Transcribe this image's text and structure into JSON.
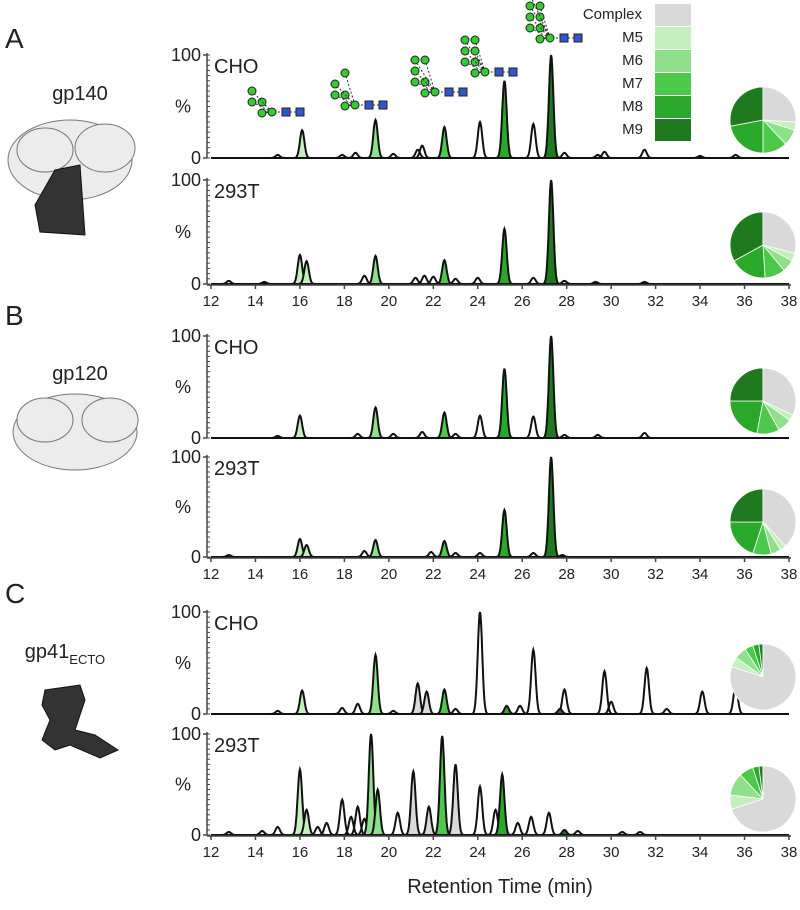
{
  "x_axis_label": "Retention Time (min)",
  "y_unit": "%",
  "legend": [
    {
      "name": "Complex",
      "color": "#d9d9d9"
    },
    {
      "name": "M5",
      "color": "#c6efc0"
    },
    {
      "name": "M6",
      "color": "#8ee08a"
    },
    {
      "name": "M7",
      "color": "#4cc94a"
    },
    {
      "name": "M8",
      "color": "#2aa82a"
    },
    {
      "name": "M9",
      "color": "#1f7a1f"
    }
  ],
  "panels": [
    {
      "letter": "A",
      "protein": "gp140"
    },
    {
      "letter": "B",
      "protein": "gp120"
    },
    {
      "letter": "C",
      "protein": "gp41",
      "protein_subscript": "ECTO"
    }
  ],
  "chart_data": [
    {
      "type": "line",
      "label": "CHO",
      "xlim": [
        12,
        38
      ],
      "ylim": [
        0,
        100
      ],
      "yticks": [
        0,
        100
      ],
      "series": [
        {
          "x": [],
          "values": []
        },
        {
          "x": [
            16.1
          ],
          "values": [
            27
          ]
        },
        {
          "x": [
            19.4
          ],
          "values": [
            37
          ]
        },
        {
          "x": [
            22.5
          ],
          "values": [
            30
          ]
        },
        {
          "x": [
            25.2
          ],
          "values": [
            75
          ]
        },
        {
          "x": [
            27.3
          ],
          "values": [
            100
          ]
        }
      ],
      "unshaded": {
        "x": [
          15.0,
          17.9,
          18.5,
          20.2,
          21.3,
          21.5,
          24.1,
          26.5,
          27.9,
          29.4,
          29.7,
          31.5,
          34.0,
          35.6
        ],
        "values": [
          3,
          3,
          5,
          4,
          8,
          12,
          35,
          33,
          5,
          3,
          6,
          8,
          2,
          3
        ]
      },
      "pie": [
        26,
        4,
        8,
        12,
        22,
        28
      ]
    },
    {
      "type": "line",
      "label": "293T",
      "xlim": [
        12,
        38
      ],
      "ylim": [
        0,
        100
      ],
      "yticks": [
        0,
        100
      ],
      "xticks": [
        12,
        14,
        16,
        18,
        20,
        22,
        24,
        26,
        28,
        30,
        32,
        34,
        36,
        38
      ],
      "series": [
        {
          "x": [],
          "values": []
        },
        {
          "x": [
            16.0,
            16.3
          ],
          "values": [
            28,
            22
          ]
        },
        {
          "x": [
            19.4
          ],
          "values": [
            27
          ]
        },
        {
          "x": [
            22.5
          ],
          "values": [
            23
          ]
        },
        {
          "x": [
            25.2
          ],
          "values": [
            53
          ]
        },
        {
          "x": [
            27.3
          ],
          "values": [
            100
          ]
        }
      ],
      "unshaded": {
        "x": [
          12.8,
          14.4,
          18.9,
          21.2,
          21.6,
          22.0,
          23.0,
          24.0,
          26.5,
          27.9,
          29.3,
          31.5
        ],
        "values": [
          3,
          2,
          8,
          6,
          8,
          7,
          5,
          6,
          6,
          3,
          2,
          2
        ]
      },
      "pie": [
        29,
        4,
        6,
        10,
        18,
        33
      ]
    },
    {
      "type": "line",
      "label": "CHO",
      "xlim": [
        12,
        38
      ],
      "ylim": [
        0,
        100
      ],
      "yticks": [
        0,
        100
      ],
      "series": [
        {
          "x": [],
          "values": []
        },
        {
          "x": [
            16.0
          ],
          "values": [
            22
          ]
        },
        {
          "x": [
            19.4
          ],
          "values": [
            30
          ]
        },
        {
          "x": [
            22.5
          ],
          "values": [
            25
          ]
        },
        {
          "x": [
            25.2
          ],
          "values": [
            68
          ]
        },
        {
          "x": [
            27.3
          ],
          "values": [
            100
          ]
        }
      ],
      "unshaded": {
        "x": [
          15.0,
          18.6,
          20.2,
          21.5,
          23.0,
          24.1,
          26.5,
          27.9,
          29.4,
          31.5
        ],
        "values": [
          2,
          4,
          4,
          6,
          4,
          22,
          21,
          3,
          3,
          5
        ]
      },
      "pie": [
        32,
        3,
        7,
        11,
        22,
        25
      ]
    },
    {
      "type": "line",
      "label": "293T",
      "xlim": [
        12,
        38
      ],
      "ylim": [
        0,
        100
      ],
      "yticks": [
        0,
        100
      ],
      "xticks": [
        12,
        14,
        16,
        18,
        20,
        22,
        24,
        26,
        28,
        30,
        32,
        34,
        36,
        38
      ],
      "series": [
        {
          "x": [],
          "values": []
        },
        {
          "x": [
            16.0,
            16.3
          ],
          "values": [
            18,
            12
          ]
        },
        {
          "x": [
            19.4
          ],
          "values": [
            17
          ]
        },
        {
          "x": [
            22.5
          ],
          "values": [
            16
          ]
        },
        {
          "x": [
            25.2
          ],
          "values": [
            47
          ]
        },
        {
          "x": [
            27.3
          ],
          "values": [
            100
          ]
        }
      ],
      "unshaded": {
        "x": [
          12.8,
          18.9,
          21.9,
          23.0,
          24.1,
          26.5,
          27.8
        ],
        "values": [
          2,
          6,
          5,
          4,
          4,
          4,
          2
        ]
      },
      "pie": [
        38,
        3,
        5,
        9,
        20,
        25
      ]
    },
    {
      "type": "line",
      "label": "CHO",
      "xlim": [
        12,
        38
      ],
      "ylim": [
        0,
        100
      ],
      "yticks": [
        0,
        100
      ],
      "series": [
        {
          "x": [
            21.3,
            21.7
          ],
          "values": [
            30,
            22
          ]
        },
        {
          "x": [
            16.1
          ],
          "values": [
            23
          ]
        },
        {
          "x": [
            19.4
          ],
          "values": [
            58
          ]
        },
        {
          "x": [
            22.5
          ],
          "values": [
            24
          ]
        },
        {
          "x": [
            25.3
          ],
          "values": [
            8
          ]
        },
        {
          "x": [
            27.7
          ],
          "values": [
            5
          ]
        }
      ],
      "unshaded": {
        "x": [
          15.0,
          17.9,
          18.6,
          20.2,
          23.0,
          24.1,
          25.9,
          26.5,
          27.9,
          29.7,
          30.0,
          31.6,
          32.5,
          34.1,
          35.6
        ],
        "values": [
          3,
          6,
          10,
          3,
          5,
          100,
          8,
          63,
          24,
          42,
          12,
          45,
          5,
          22,
          27
        ]
      },
      "pie": [
        80,
        5,
        6,
        4,
        3,
        2
      ]
    },
    {
      "type": "line",
      "label": "293T",
      "xlim": [
        12,
        38
      ],
      "ylim": [
        0,
        100
      ],
      "yticks": [
        0,
        100
      ],
      "xticks": [
        12,
        14,
        16,
        18,
        20,
        22,
        24,
        26,
        28,
        30,
        32,
        34,
        36,
        38
      ],
      "series": [
        {
          "x": [
            21.1,
            21.8,
            23.0
          ],
          "values": [
            63,
            28,
            70
          ]
        },
        {
          "x": [
            16.0,
            16.3
          ],
          "values": [
            65,
            25
          ]
        },
        {
          "x": [
            19.2,
            19.5
          ],
          "values": [
            100,
            45
          ]
        },
        {
          "x": [
            22.4
          ],
          "values": [
            98
          ]
        },
        {
          "x": [
            25.1
          ],
          "values": [
            60
          ]
        },
        {
          "x": [
            27.9
          ],
          "values": [
            5
          ]
        }
      ],
      "unshaded": {
        "x": [
          12.8,
          14.3,
          15.0,
          16.8,
          17.2,
          17.9,
          18.3,
          18.6,
          18.9,
          20.4,
          24.1,
          24.8,
          25.8,
          26.4,
          27.2,
          28.5,
          30.5,
          31.3
        ],
        "values": [
          3,
          4,
          8,
          8,
          12,
          35,
          18,
          28,
          16,
          22,
          48,
          25,
          12,
          18,
          22,
          4,
          3,
          3
        ]
      },
      "pie": [
        70,
        7,
        11,
        7,
        3,
        2
      ]
    }
  ]
}
